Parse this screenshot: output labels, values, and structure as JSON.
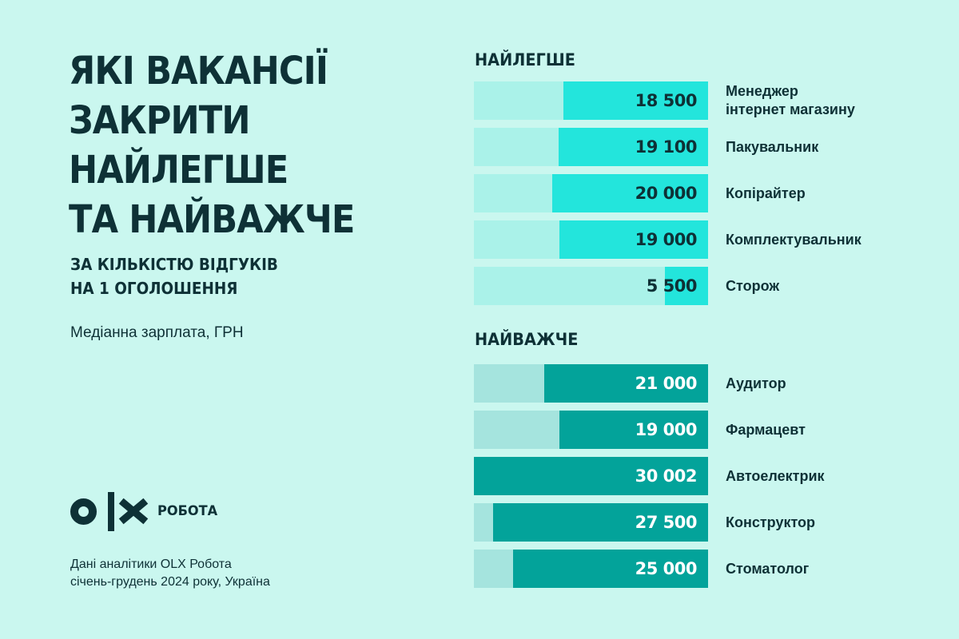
{
  "title": {
    "lines": [
      "ЯКІ ВАКАНСІЇ",
      "ЗАКРИТИ",
      "НАЙЛЕГШЕ",
      "ТА НАЙВАЖЧЕ"
    ]
  },
  "subtitle": {
    "lines": [
      "ЗА КІЛЬКІСТЮ ВІДГУКІВ",
      "НА 1 ОГОЛОШЕННЯ"
    ]
  },
  "unit_note": "Медіанна зарплата, ГРН",
  "logo": {
    "mark": "OLX",
    "brand": "РОБОТА"
  },
  "source": {
    "lines": [
      "Дані аналітики OLX Робота",
      "січень-грудень 2024 року, Україна"
    ]
  },
  "colors": {
    "background": "#caf7ef",
    "text": "#0e3136",
    "easy_track": "#aaf2e9",
    "easy_fill": "#23e5dc",
    "hard_track": "#a5e4de",
    "hard_fill": "#03a39a"
  },
  "chart_data": {
    "type": "bar",
    "orientation": "horizontal",
    "title": "Які вакансії закрити найлегше та найважче",
    "subtitle": "За кількістю відгуків на 1 оголошення",
    "value_label": "Медіанна зарплата, ГРН",
    "scale_max": 30002,
    "groups": [
      {
        "name": "НАЙЛЕГШЕ",
        "categories": [
          "Менеджер інтернет магазину",
          "Пакувальник",
          "Копірайтер",
          "Комплектувальник",
          "Сторож"
        ],
        "values": [
          18500,
          19100,
          20000,
          19000,
          5500
        ],
        "display_values": [
          "18 500",
          "19 100",
          "20 000",
          "19 000",
          "5 500"
        ],
        "label_lines": [
          [
            "Менеджер",
            "інтернет магазину"
          ],
          [
            "Пакувальник"
          ],
          [
            "Копірайтер"
          ],
          [
            "Комплектувальник"
          ],
          [
            "Сторож"
          ]
        ]
      },
      {
        "name": "НАЙВАЖЧЕ",
        "categories": [
          "Аудитор",
          "Фармацевт",
          "Автоелектрик",
          "Конструктор",
          "Стоматолог"
        ],
        "values": [
          21000,
          19000,
          30002,
          27500,
          25000
        ],
        "display_values": [
          "21 000",
          "19 000",
          "30 002",
          "27 500",
          "25 000"
        ],
        "label_lines": [
          [
            "Аудитор"
          ],
          [
            "Фармацевт"
          ],
          [
            "Автоелектрик"
          ],
          [
            "Конструктор"
          ],
          [
            "Стоматолог"
          ]
        ]
      }
    ],
    "grid": false,
    "legend": null
  }
}
